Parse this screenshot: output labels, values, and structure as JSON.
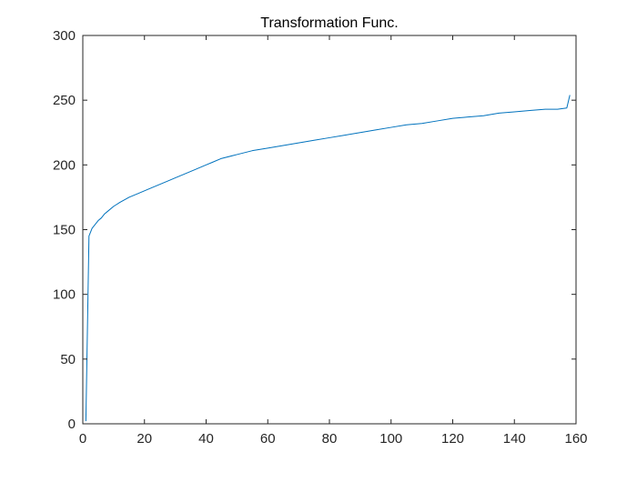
{
  "chart_data": {
    "type": "line",
    "title": "Transformation Func.",
    "xlabel": "",
    "ylabel": "",
    "xlim": [
      0,
      160
    ],
    "ylim": [
      0,
      300
    ],
    "xticks": [
      0,
      20,
      40,
      60,
      80,
      100,
      120,
      140,
      160
    ],
    "yticks": [
      0,
      50,
      100,
      150,
      200,
      250,
      300
    ],
    "xtick_labels": [
      "0",
      "20",
      "40",
      "60",
      "80",
      "100",
      "120",
      "140",
      "160"
    ],
    "ytick_labels": [
      "0",
      "50",
      "100",
      "150",
      "200",
      "250",
      "300"
    ],
    "grid": false,
    "series": [
      {
        "color": "#0072BD",
        "x": [
          1,
          2,
          3,
          4,
          5,
          6,
          7,
          8,
          10,
          12,
          15,
          18,
          20,
          22,
          25,
          28,
          30,
          33,
          36,
          38,
          40,
          42,
          45,
          50,
          55,
          60,
          65,
          70,
          75,
          80,
          85,
          90,
          95,
          100,
          105,
          110,
          115,
          120,
          125,
          130,
          135,
          140,
          145,
          150,
          154,
          157,
          158
        ],
        "y": [
          2,
          145,
          151,
          154,
          157,
          159,
          162,
          164,
          168,
          171,
          175,
          178,
          180,
          182,
          185,
          188,
          190,
          193,
          196,
          198,
          200,
          202,
          205,
          208,
          211,
          213,
          215,
          217,
          219,
          221,
          223,
          225,
          227,
          229,
          231,
          232,
          234,
          236,
          237,
          238,
          240,
          241,
          242,
          243,
          243,
          244,
          254
        ]
      }
    ]
  }
}
